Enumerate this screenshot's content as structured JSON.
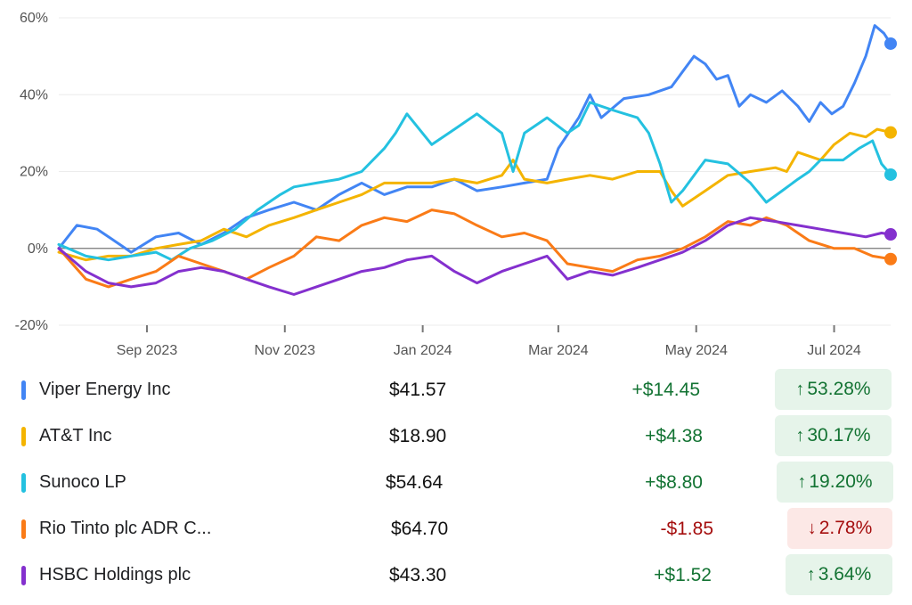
{
  "chart_data": {
    "type": "line",
    "yunit": "%",
    "ylim": [
      -20,
      60
    ],
    "yticks": [
      {
        "value": 60,
        "label": "60%"
      },
      {
        "value": 40,
        "label": "40%"
      },
      {
        "value": 20,
        "label": "20%"
      },
      {
        "value": 0,
        "label": "0%"
      },
      {
        "value": -20,
        "label": "-20%"
      }
    ],
    "xlim": [
      "2023-07-24",
      "2024-07-26"
    ],
    "xticks": [
      {
        "date": "2023-09-01",
        "label": "Sep 2023"
      },
      {
        "date": "2023-11-01",
        "label": "Nov 2023"
      },
      {
        "date": "2024-01-01",
        "label": "Jan 2024"
      },
      {
        "date": "2024-03-01",
        "label": "Mar 2024"
      },
      {
        "date": "2024-05-01",
        "label": "May 2024"
      },
      {
        "date": "2024-07-01",
        "label": "Jul 2024"
      }
    ],
    "grid": "horizontal",
    "series": [
      {
        "name": "Viper Energy Inc",
        "color": "#4285F4",
        "points": [
          [
            "2023-07-24",
            0
          ],
          [
            "2023-08-01",
            6
          ],
          [
            "2023-08-10",
            5
          ],
          [
            "2023-08-20",
            1
          ],
          [
            "2023-08-25",
            -1
          ],
          [
            "2023-09-05",
            3
          ],
          [
            "2023-09-15",
            4
          ],
          [
            "2023-09-25",
            1
          ],
          [
            "2023-10-05",
            4
          ],
          [
            "2023-10-15",
            8
          ],
          [
            "2023-10-25",
            10
          ],
          [
            "2023-11-05",
            12
          ],
          [
            "2023-11-15",
            10
          ],
          [
            "2023-11-25",
            14
          ],
          [
            "2023-12-05",
            17
          ],
          [
            "2023-12-15",
            14
          ],
          [
            "2023-12-25",
            16
          ],
          [
            "2024-01-05",
            16
          ],
          [
            "2024-01-15",
            18
          ],
          [
            "2024-01-25",
            15
          ],
          [
            "2024-02-05",
            16
          ],
          [
            "2024-02-15",
            17
          ],
          [
            "2024-02-25",
            18
          ],
          [
            "2024-03-01",
            26
          ],
          [
            "2024-03-10",
            34
          ],
          [
            "2024-03-15",
            40
          ],
          [
            "2024-03-20",
            34
          ],
          [
            "2024-03-30",
            39
          ],
          [
            "2024-04-10",
            40
          ],
          [
            "2024-04-20",
            42
          ],
          [
            "2024-04-30",
            50
          ],
          [
            "2024-05-05",
            48
          ],
          [
            "2024-05-10",
            44
          ],
          [
            "2024-05-15",
            45
          ],
          [
            "2024-05-20",
            37
          ],
          [
            "2024-05-25",
            40
          ],
          [
            "2024-06-01",
            38
          ],
          [
            "2024-06-08",
            41
          ],
          [
            "2024-06-15",
            37
          ],
          [
            "2024-06-20",
            33
          ],
          [
            "2024-06-25",
            38
          ],
          [
            "2024-06-30",
            35
          ],
          [
            "2024-07-05",
            37
          ],
          [
            "2024-07-10",
            43
          ],
          [
            "2024-07-15",
            50
          ],
          [
            "2024-07-19",
            58
          ],
          [
            "2024-07-23",
            56
          ],
          [
            "2024-07-26",
            53.28
          ]
        ]
      },
      {
        "name": "AT&T Inc",
        "color": "#F4B400",
        "points": [
          [
            "2023-07-24",
            -1
          ],
          [
            "2023-08-05",
            -3
          ],
          [
            "2023-08-15",
            -2
          ],
          [
            "2023-08-25",
            -2
          ],
          [
            "2023-09-05",
            0
          ],
          [
            "2023-09-15",
            1
          ],
          [
            "2023-09-25",
            2
          ],
          [
            "2023-10-05",
            5
          ],
          [
            "2023-10-15",
            3
          ],
          [
            "2023-10-25",
            6
          ],
          [
            "2023-11-05",
            8
          ],
          [
            "2023-11-15",
            10
          ],
          [
            "2023-11-25",
            12
          ],
          [
            "2023-12-05",
            14
          ],
          [
            "2023-12-15",
            17
          ],
          [
            "2023-12-25",
            17
          ],
          [
            "2024-01-05",
            17
          ],
          [
            "2024-01-15",
            18
          ],
          [
            "2024-01-25",
            17
          ],
          [
            "2024-02-05",
            19
          ],
          [
            "2024-02-10",
            23
          ],
          [
            "2024-02-15",
            18
          ],
          [
            "2024-02-25",
            17
          ],
          [
            "2024-03-05",
            18
          ],
          [
            "2024-03-15",
            19
          ],
          [
            "2024-03-25",
            18
          ],
          [
            "2024-04-05",
            20
          ],
          [
            "2024-04-15",
            20
          ],
          [
            "2024-04-20",
            15
          ],
          [
            "2024-04-25",
            11
          ],
          [
            "2024-05-05",
            15
          ],
          [
            "2024-05-15",
            19
          ],
          [
            "2024-05-25",
            20
          ],
          [
            "2024-06-05",
            21
          ],
          [
            "2024-06-10",
            20
          ],
          [
            "2024-06-15",
            25
          ],
          [
            "2024-06-25",
            23
          ],
          [
            "2024-07-01",
            27
          ],
          [
            "2024-07-08",
            30
          ],
          [
            "2024-07-15",
            29
          ],
          [
            "2024-07-20",
            31
          ],
          [
            "2024-07-26",
            30.17
          ]
        ]
      },
      {
        "name": "Sunoco LP",
        "color": "#24C1E0",
        "points": [
          [
            "2023-07-24",
            1
          ],
          [
            "2023-08-05",
            -2
          ],
          [
            "2023-08-15",
            -3
          ],
          [
            "2023-08-25",
            -2
          ],
          [
            "2023-09-05",
            -1
          ],
          [
            "2023-09-12",
            -3
          ],
          [
            "2023-09-20",
            0
          ],
          [
            "2023-09-30",
            2
          ],
          [
            "2023-10-10",
            5
          ],
          [
            "2023-10-20",
            10
          ],
          [
            "2023-10-30",
            14
          ],
          [
            "2023-11-05",
            16
          ],
          [
            "2023-11-15",
            17
          ],
          [
            "2023-11-25",
            18
          ],
          [
            "2023-12-05",
            20
          ],
          [
            "2023-12-15",
            26
          ],
          [
            "2023-12-20",
            30
          ],
          [
            "2023-12-25",
            35
          ],
          [
            "2024-01-05",
            27
          ],
          [
            "2024-01-15",
            31
          ],
          [
            "2024-01-25",
            35
          ],
          [
            "2024-02-05",
            30
          ],
          [
            "2024-02-10",
            20
          ],
          [
            "2024-02-15",
            30
          ],
          [
            "2024-02-25",
            34
          ],
          [
            "2024-03-05",
            30
          ],
          [
            "2024-03-10",
            32
          ],
          [
            "2024-03-15",
            38
          ],
          [
            "2024-03-25",
            36
          ],
          [
            "2024-04-05",
            34
          ],
          [
            "2024-04-10",
            30
          ],
          [
            "2024-04-15",
            22
          ],
          [
            "2024-04-20",
            12
          ],
          [
            "2024-04-25",
            15
          ],
          [
            "2024-05-05",
            23
          ],
          [
            "2024-05-15",
            22
          ],
          [
            "2024-05-25",
            17
          ],
          [
            "2024-06-01",
            12
          ],
          [
            "2024-06-08",
            15
          ],
          [
            "2024-06-15",
            18
          ],
          [
            "2024-06-20",
            20
          ],
          [
            "2024-06-25",
            23
          ],
          [
            "2024-07-05",
            23
          ],
          [
            "2024-07-12",
            26
          ],
          [
            "2024-07-18",
            28
          ],
          [
            "2024-07-22",
            22
          ],
          [
            "2024-07-26",
            19.2
          ]
        ]
      },
      {
        "name": "Rio Tinto plc ADR C...",
        "color": "#FA7B17",
        "points": [
          [
            "2023-07-24",
            0
          ],
          [
            "2023-08-05",
            -8
          ],
          [
            "2023-08-15",
            -10
          ],
          [
            "2023-08-25",
            -8
          ],
          [
            "2023-09-05",
            -6
          ],
          [
            "2023-09-15",
            -2
          ],
          [
            "2023-09-25",
            -4
          ],
          [
            "2023-10-05",
            -6
          ],
          [
            "2023-10-15",
            -8
          ],
          [
            "2023-10-25",
            -5
          ],
          [
            "2023-11-05",
            -2
          ],
          [
            "2023-11-15",
            3
          ],
          [
            "2023-11-25",
            2
          ],
          [
            "2023-12-05",
            6
          ],
          [
            "2023-12-15",
            8
          ],
          [
            "2023-12-25",
            7
          ],
          [
            "2024-01-05",
            10
          ],
          [
            "2024-01-15",
            9
          ],
          [
            "2024-01-25",
            6
          ],
          [
            "2024-02-05",
            3
          ],
          [
            "2024-02-15",
            4
          ],
          [
            "2024-02-25",
            2
          ],
          [
            "2024-03-05",
            -4
          ],
          [
            "2024-03-15",
            -5
          ],
          [
            "2024-03-25",
            -6
          ],
          [
            "2024-04-05",
            -3
          ],
          [
            "2024-04-15",
            -2
          ],
          [
            "2024-04-25",
            0
          ],
          [
            "2024-05-05",
            3
          ],
          [
            "2024-05-15",
            7
          ],
          [
            "2024-05-25",
            6
          ],
          [
            "2024-06-01",
            8
          ],
          [
            "2024-06-10",
            6
          ],
          [
            "2024-06-20",
            2
          ],
          [
            "2024-07-01",
            0
          ],
          [
            "2024-07-10",
            0
          ],
          [
            "2024-07-18",
            -2
          ],
          [
            "2024-07-26",
            -2.78
          ]
        ]
      },
      {
        "name": "HSBC Holdings plc",
        "color": "#8430CE",
        "points": [
          [
            "2023-07-24",
            0
          ],
          [
            "2023-08-05",
            -6
          ],
          [
            "2023-08-15",
            -9
          ],
          [
            "2023-08-25",
            -10
          ],
          [
            "2023-09-05",
            -9
          ],
          [
            "2023-09-15",
            -6
          ],
          [
            "2023-09-25",
            -5
          ],
          [
            "2023-10-05",
            -6
          ],
          [
            "2023-10-15",
            -8
          ],
          [
            "2023-10-25",
            -10
          ],
          [
            "2023-11-05",
            -12
          ],
          [
            "2023-11-15",
            -10
          ],
          [
            "2023-11-25",
            -8
          ],
          [
            "2023-12-05",
            -6
          ],
          [
            "2023-12-15",
            -5
          ],
          [
            "2023-12-25",
            -3
          ],
          [
            "2024-01-05",
            -2
          ],
          [
            "2024-01-15",
            -6
          ],
          [
            "2024-01-25",
            -9
          ],
          [
            "2024-02-05",
            -6
          ],
          [
            "2024-02-15",
            -4
          ],
          [
            "2024-02-25",
            -2
          ],
          [
            "2024-03-05",
            -8
          ],
          [
            "2024-03-15",
            -6
          ],
          [
            "2024-03-25",
            -7
          ],
          [
            "2024-04-05",
            -5
          ],
          [
            "2024-04-15",
            -3
          ],
          [
            "2024-04-25",
            -1
          ],
          [
            "2024-05-05",
            2
          ],
          [
            "2024-05-15",
            6
          ],
          [
            "2024-05-25",
            8
          ],
          [
            "2024-06-05",
            7
          ],
          [
            "2024-06-15",
            6
          ],
          [
            "2024-06-25",
            5
          ],
          [
            "2024-07-05",
            4
          ],
          [
            "2024-07-15",
            3
          ],
          [
            "2024-07-22",
            4
          ],
          [
            "2024-07-26",
            3.64
          ]
        ]
      }
    ]
  },
  "legend": [
    {
      "name": "Viper Energy Inc",
      "color": "#4285F4",
      "price": "$41.57",
      "change": "+$14.45",
      "pct": "53.28%",
      "direction": "up"
    },
    {
      "name": "AT&T Inc",
      "color": "#F4B400",
      "price": "$18.90",
      "change": "+$4.38",
      "pct": "30.17%",
      "direction": "up"
    },
    {
      "name": "Sunoco LP",
      "color": "#24C1E0",
      "price": "$54.64",
      "change": "+$8.80",
      "pct": "19.20%",
      "direction": "up"
    },
    {
      "name": "Rio Tinto plc ADR C...",
      "color": "#FA7B17",
      "price": "$64.70",
      "change": "-$1.85",
      "pct": "2.78%",
      "direction": "down"
    },
    {
      "name": "HSBC Holdings plc",
      "color": "#8430CE",
      "price": "$43.30",
      "change": "+$1.52",
      "pct": "3.64%",
      "direction": "up"
    }
  ],
  "icons": {
    "up": "↑",
    "down": "↓"
  }
}
